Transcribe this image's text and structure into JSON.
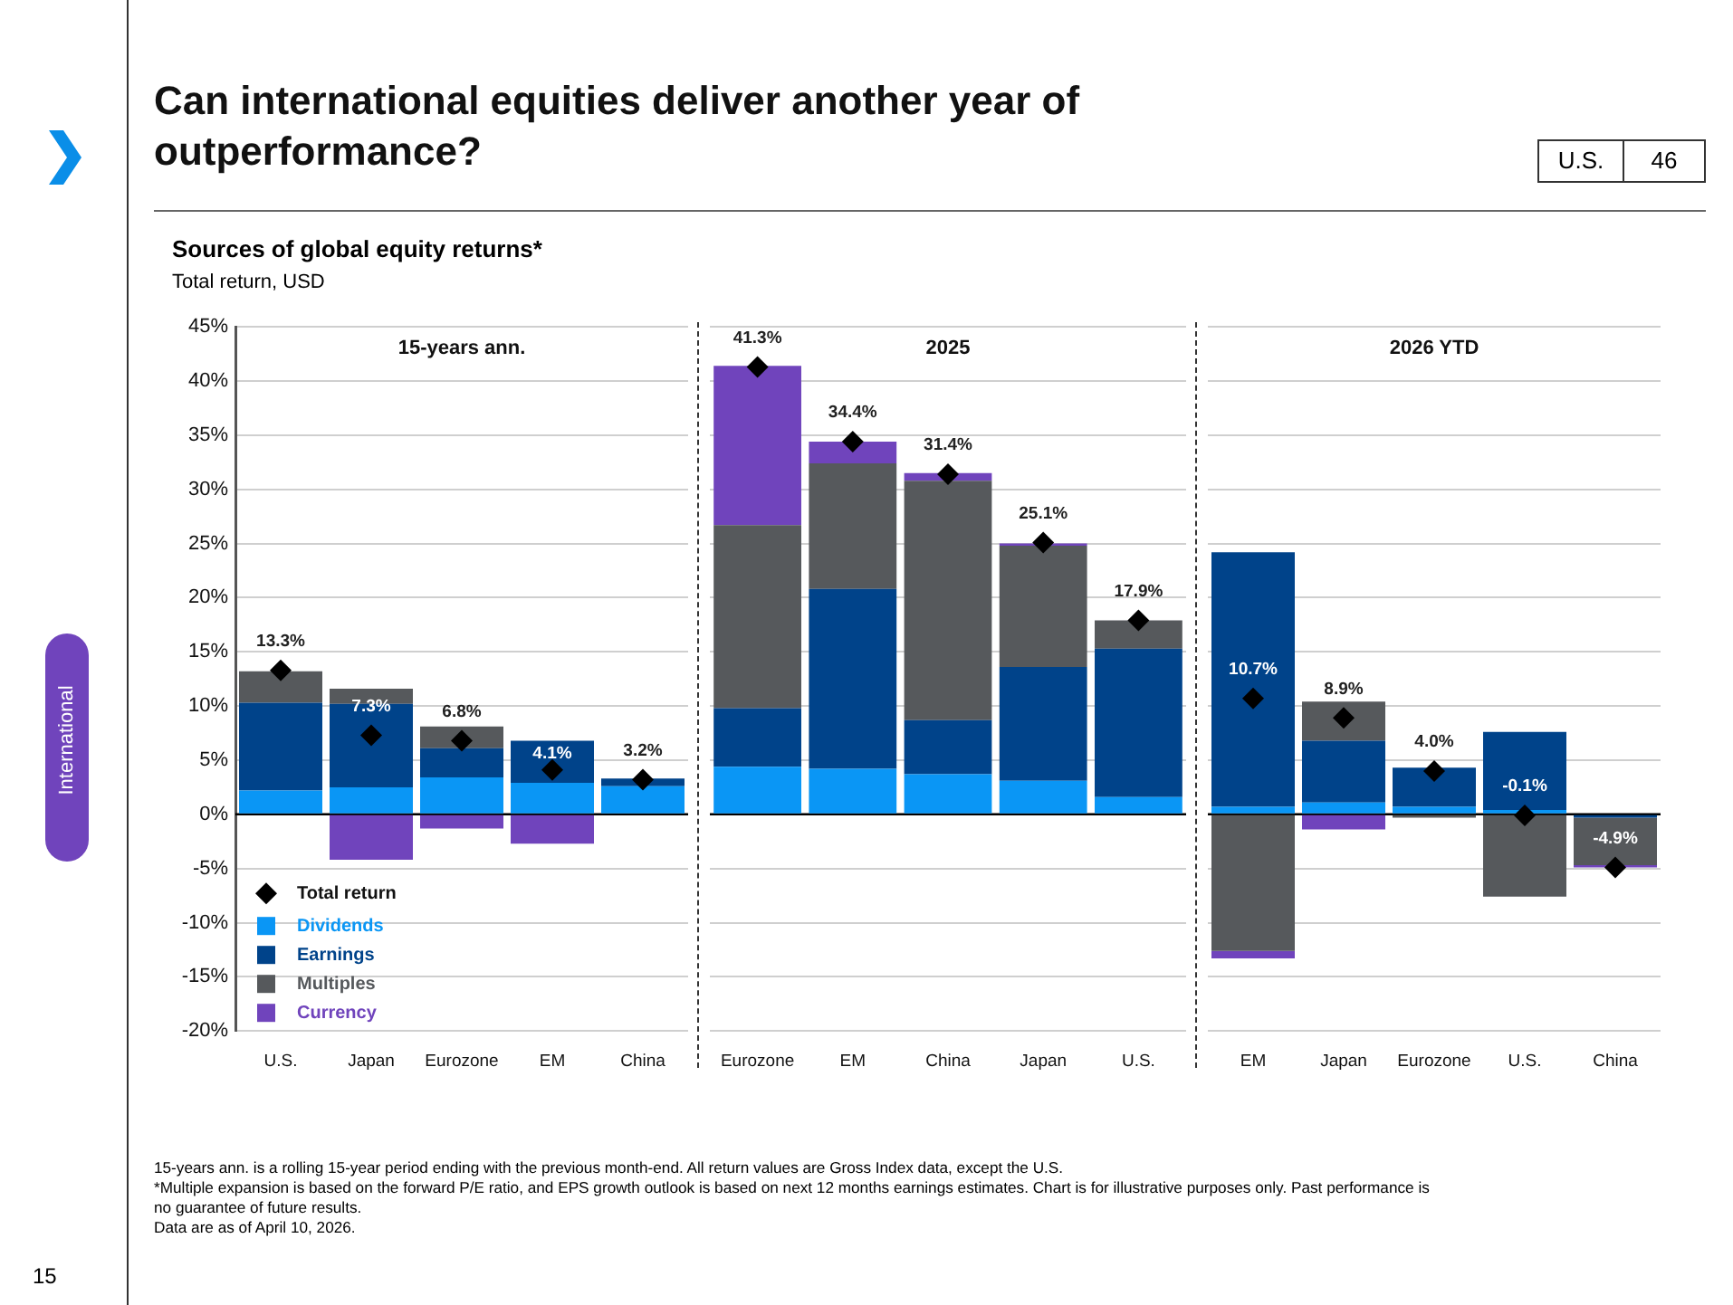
{
  "chart_data": [
    {
      "type": "other",
      "title": "Can international equities deliver another year of outperformance?",
      "subtitle": "Sources of global equity returns*",
      "annotations": [
        "U.S.",
        "46",
        "International",
        "15",
        "15-years ann. is a rolling 15-year period ending with the previous month-end. All return values are Gross Index data, except the U.S.",
        "*Multiple expansion is based on the forward P/E ratio, and EPS growth outlook is based on next 12 months earnings estimates. Chart is for illustrative purposes only. Past performance is no guarantee of future results.",
        "Data are as of April 10, 2026."
      ]
    },
    {
      "type": "bar",
      "stacked": true,
      "title": "15-years ann.",
      "ylabel": "Total return, USD",
      "categories": [
        "U.S.",
        "Japan",
        "Eurozone",
        "EM",
        "China"
      ],
      "ylim": [
        -20,
        45
      ],
      "yticks": [
        {
          "value": -20,
          "label": "-20%"
        },
        {
          "value": -15,
          "label": "-15%"
        },
        {
          "value": -10,
          "label": "-10%"
        },
        {
          "value": -5,
          "label": "-5%"
        },
        {
          "value": 0,
          "label": "0%"
        },
        {
          "value": 5,
          "label": "5%"
        },
        {
          "value": 10,
          "label": "10%"
        },
        {
          "value": 15,
          "label": "15%"
        },
        {
          "value": 20,
          "label": "20%"
        },
        {
          "value": 25,
          "label": "25%"
        },
        {
          "value": 30,
          "label": "30%"
        },
        {
          "value": 35,
          "label": "35%"
        },
        {
          "value": 40,
          "label": "40%"
        },
        {
          "value": 45,
          "label": "45%"
        }
      ],
      "grid": "y",
      "legend": "bottom left",
      "series": [
        {
          "name": "Total return",
          "type": "scatter",
          "marker": "diamond",
          "color": "#000000",
          "x": [
            "U.S.",
            "Japan",
            "Eurozone",
            "EM",
            "China"
          ],
          "values": [
            13.3,
            7.3,
            6.8,
            4.1,
            3.2
          ],
          "value_labels": [
            "13.3%",
            "7.3%",
            "6.8%",
            "4.1%",
            "3.2%"
          ]
        },
        {
          "name": "Dividends",
          "color": "#0a96f5",
          "values": [
            2.2,
            2.5,
            3.4,
            2.9,
            2.6
          ]
        },
        {
          "name": "Earnings",
          "color": "#00438a",
          "values": [
            8.1,
            7.7,
            2.7,
            3.9,
            0.7
          ]
        },
        {
          "name": "Multiples",
          "color": "#56595c",
          "values": [
            2.9,
            1.4,
            2.0,
            0,
            0
          ]
        },
        {
          "name": "Currency",
          "color": "#7044bc",
          "values": [
            0,
            -4.2,
            -1.3,
            -2.7,
            0
          ]
        }
      ]
    },
    {
      "type": "bar",
      "stacked": true,
      "title": "2025",
      "categories": [
        "Eurozone",
        "EM",
        "China",
        "Japan",
        "U.S."
      ],
      "tick_labels": "x",
      "ylim": [
        -20,
        45
      ],
      "grid": "y",
      "series": [
        {
          "type": "scatter",
          "marker": "diamond",
          "color": "#000000",
          "x": [
            "Eurozone",
            "EM",
            "China",
            "Japan",
            "U.S."
          ],
          "values": [
            41.3,
            34.4,
            31.4,
            25.1,
            17.9
          ],
          "value_labels": [
            "41.3%",
            "34.4%",
            "31.4%",
            "25.1%",
            "17.9%"
          ]
        },
        {
          "color": "#0a96f5",
          "values": [
            4.4,
            4.2,
            3.7,
            3.1,
            1.6
          ]
        },
        {
          "color": "#00438a",
          "values": [
            5.4,
            16.6,
            5.0,
            10.5,
            13.7
          ]
        },
        {
          "color": "#56595c",
          "values": [
            16.9,
            11.6,
            22.1,
            11.2,
            2.6
          ]
        },
        {
          "color": "#7044bc",
          "values": [
            14.7,
            2.0,
            0.7,
            0.2,
            0
          ]
        }
      ]
    },
    {
      "type": "bar",
      "stacked": true,
      "title": "2026 YTD",
      "categories": [
        "EM",
        "Japan",
        "Eurozone",
        "U.S.",
        "China"
      ],
      "tick_labels": "x",
      "ylim": [
        -20,
        45
      ],
      "grid": "y",
      "series": [
        {
          "type": "scatter",
          "marker": "diamond",
          "color": "#000000",
          "x": [
            "EM",
            "Japan",
            "Eurozone",
            "U.S.",
            "China"
          ],
          "values": [
            10.7,
            8.9,
            4.0,
            -0.1,
            -4.9
          ],
          "value_labels": [
            "10.7%",
            "8.9%",
            "4.0%",
            "-0.1%",
            "-4.9%"
          ]
        },
        {
          "color": "#0a96f5",
          "values": [
            0.7,
            1.1,
            0.7,
            0.4,
            null
          ]
        },
        {
          "color": "#00438a",
          "values": [
            23.5,
            5.7,
            3.6,
            7.2,
            -0.3
          ]
        },
        {
          "color": "#56595c",
          "values": [
            -12.6,
            3.6,
            -0.3,
            -7.6,
            -4.4
          ]
        },
        {
          "color": "#7044bc",
          "values": [
            -0.7,
            -1.4,
            0,
            0,
            -0.2
          ]
        }
      ]
    }
  ]
}
